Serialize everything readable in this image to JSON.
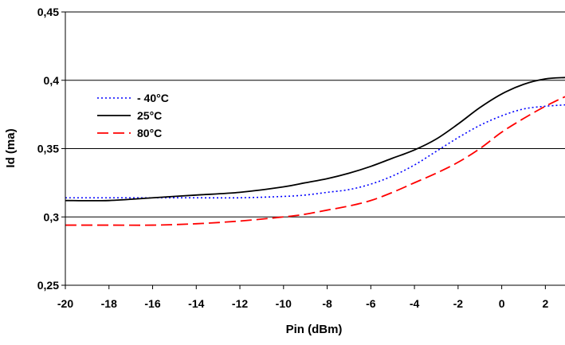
{
  "chart_data": {
    "type": "line",
    "title": "",
    "xlabel": "Pin (dBm)",
    "ylabel": "Id (ma)",
    "xlim": [
      -20,
      2.9
    ],
    "ylim": [
      0.25,
      0.45
    ],
    "x_ticks": [
      "-20",
      "-18",
      "-16",
      "-14",
      "-12",
      "-10",
      "-8",
      "-6",
      "-4",
      "-2",
      "0",
      "2"
    ],
    "x_tick_values": [
      -20,
      -18,
      -16,
      -14,
      -12,
      -10,
      -8,
      -6,
      -4,
      -2,
      0,
      2
    ],
    "y_ticks": [
      "0,25",
      "0,3",
      "0,35",
      "0,4",
      "0,45"
    ],
    "y_tick_values": [
      0.25,
      0.3,
      0.35,
      0.4,
      0.45
    ],
    "grid": "horizontal",
    "legend_position": "top-left",
    "series": [
      {
        "name": "- 40°C",
        "color": "#0000ff",
        "dash": "dotted",
        "x": [
          -20,
          -18,
          -16,
          -14,
          -12,
          -10,
          -9,
          -8,
          -7,
          -6,
          -5,
          -4,
          -3,
          -2,
          -1,
          0,
          1,
          2,
          2.9
        ],
        "y": [
          0.314,
          0.314,
          0.314,
          0.314,
          0.314,
          0.315,
          0.316,
          0.318,
          0.32,
          0.324,
          0.33,
          0.338,
          0.348,
          0.358,
          0.367,
          0.374,
          0.379,
          0.381,
          0.382
        ]
      },
      {
        "name": "25°C",
        "color": "#000000",
        "dash": "solid",
        "x": [
          -20,
          -18,
          -16,
          -14,
          -12,
          -10,
          -9,
          -8,
          -7,
          -6,
          -5,
          -4,
          -3,
          -2,
          -1,
          0,
          1,
          2,
          2.9
        ],
        "y": [
          0.312,
          0.312,
          0.314,
          0.316,
          0.318,
          0.322,
          0.325,
          0.328,
          0.332,
          0.337,
          0.343,
          0.349,
          0.357,
          0.368,
          0.38,
          0.39,
          0.397,
          0.401,
          0.402
        ]
      },
      {
        "name": "80°C",
        "color": "#ff0000",
        "dash": "dashed",
        "x": [
          -20,
          -18,
          -16,
          -14,
          -12,
          -10,
          -9,
          -8,
          -7,
          -6,
          -5,
          -4,
          -3,
          -2,
          -1,
          0,
          1,
          2,
          2.9
        ],
        "y": [
          0.294,
          0.294,
          0.294,
          0.295,
          0.297,
          0.3,
          0.302,
          0.305,
          0.308,
          0.312,
          0.318,
          0.325,
          0.332,
          0.34,
          0.35,
          0.362,
          0.372,
          0.381,
          0.388
        ]
      }
    ]
  }
}
